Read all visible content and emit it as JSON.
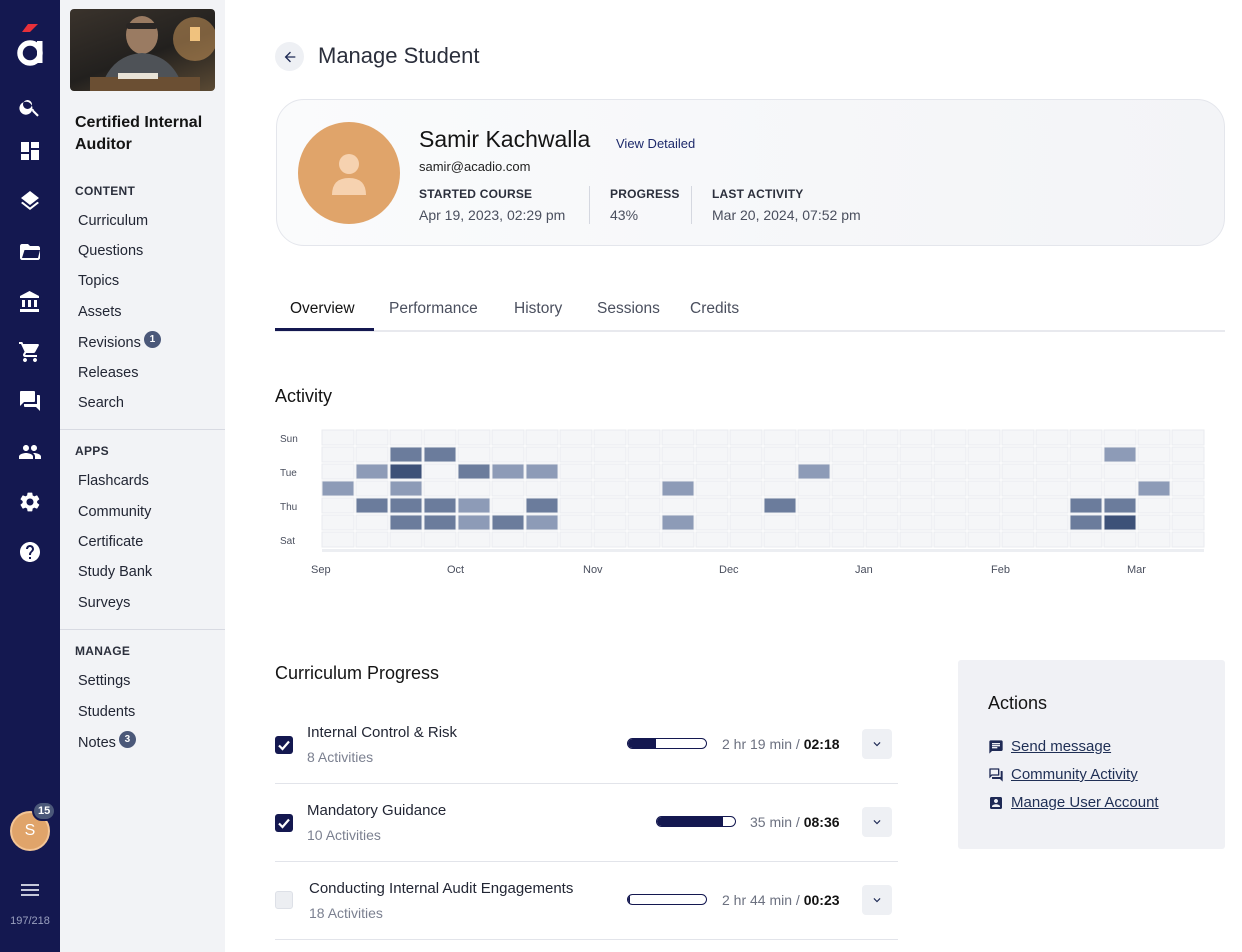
{
  "rail": {
    "logo_icon": "acadio-logo",
    "icons": [
      "search-icon",
      "dashboard-icon",
      "layers-icon",
      "folder-icon",
      "bank-icon",
      "cart-icon",
      "chat-icon",
      "people-icon",
      "gear-icon",
      "help-icon"
    ],
    "avatar_initial": "S",
    "avatar_badge": "15",
    "version": "197/218"
  },
  "sidebar": {
    "course_title": "Certified Internal Auditor",
    "content_title": "CONTENT",
    "content_items": [
      {
        "label": "Curriculum"
      },
      {
        "label": "Questions"
      },
      {
        "label": "Topics"
      },
      {
        "label": "Assets"
      },
      {
        "label": "Revisions",
        "badge": "1"
      },
      {
        "label": "Releases"
      },
      {
        "label": "Search"
      }
    ],
    "apps_title": "APPS",
    "apps_items": [
      {
        "label": "Flashcards"
      },
      {
        "label": "Community"
      },
      {
        "label": "Certificate"
      },
      {
        "label": "Study Bank"
      },
      {
        "label": "Surveys"
      }
    ],
    "manage_title": "MANAGE",
    "manage_items": [
      {
        "label": "Settings"
      },
      {
        "label": "Students"
      },
      {
        "label": "Notes",
        "badge": "3"
      }
    ]
  },
  "header": {
    "title": "Manage Student"
  },
  "profile": {
    "name": "Samir Kachwalla",
    "view_link": "View Detailed",
    "email": "samir@acadio.com",
    "started_label": "STARTED COURSE",
    "started_value": "Apr 19, 2023, 02:29 pm",
    "progress_label": "PROGRESS",
    "progress_value": "43%",
    "last_label": "LAST ACTIVITY",
    "last_value": "Mar 20, 2024, 07:52 pm"
  },
  "tabs": [
    "Overview",
    "Performance",
    "History",
    "Sessions",
    "Credits"
  ],
  "activity": {
    "title": "Activity",
    "day_labels": [
      "Sun",
      "",
      "Tue",
      "",
      "Thu",
      "",
      "Sat"
    ],
    "month_labels": [
      {
        "label": "Sep",
        "week": 0
      },
      {
        "label": "Oct",
        "week": 4
      },
      {
        "label": "Nov",
        "week": 8
      },
      {
        "label": "Dec",
        "week": 12
      },
      {
        "label": "Jan",
        "week": 16
      },
      {
        "label": "Feb",
        "week": 20
      },
      {
        "label": "Mar",
        "week": 24
      }
    ],
    "weeks": 26,
    "levels": [
      "#f5f6f8",
      "#8d9bb7",
      "#6b7c9c",
      "#3d5178"
    ],
    "active_cells": [
      {
        "week": 0,
        "day": 3,
        "level": 1
      },
      {
        "week": 1,
        "day": 2,
        "level": 1
      },
      {
        "week": 1,
        "day": 4,
        "level": 2
      },
      {
        "week": 2,
        "day": 1,
        "level": 2
      },
      {
        "week": 2,
        "day": 2,
        "level": 3
      },
      {
        "week": 2,
        "day": 3,
        "level": 1
      },
      {
        "week": 2,
        "day": 4,
        "level": 2
      },
      {
        "week": 2,
        "day": 5,
        "level": 2
      },
      {
        "week": 3,
        "day": 1,
        "level": 2
      },
      {
        "week": 3,
        "day": 4,
        "level": 2
      },
      {
        "week": 3,
        "day": 5,
        "level": 2
      },
      {
        "week": 4,
        "day": 2,
        "level": 2
      },
      {
        "week": 4,
        "day": 4,
        "level": 1
      },
      {
        "week": 4,
        "day": 5,
        "level": 1
      },
      {
        "week": 5,
        "day": 2,
        "level": 1
      },
      {
        "week": 5,
        "day": 5,
        "level": 2
      },
      {
        "week": 6,
        "day": 2,
        "level": 1
      },
      {
        "week": 6,
        "day": 4,
        "level": 2
      },
      {
        "week": 6,
        "day": 5,
        "level": 1
      },
      {
        "week": 10,
        "day": 3,
        "level": 1
      },
      {
        "week": 10,
        "day": 5,
        "level": 1
      },
      {
        "week": 13,
        "day": 4,
        "level": 2
      },
      {
        "week": 14,
        "day": 2,
        "level": 1
      },
      {
        "week": 22,
        "day": 4,
        "level": 2
      },
      {
        "week": 22,
        "day": 5,
        "level": 2
      },
      {
        "week": 23,
        "day": 1,
        "level": 1
      },
      {
        "week": 23,
        "day": 4,
        "level": 2
      },
      {
        "week": 23,
        "day": 5,
        "level": 3
      },
      {
        "week": 24,
        "day": 3,
        "level": 1
      }
    ]
  },
  "curriculum": {
    "title": "Curriculum Progress",
    "rows": [
      {
        "title": "Internal Control & Risk",
        "sub": "8 Activities",
        "checked": true,
        "progress": 0.36,
        "time": "2 hr 19 min / ",
        "time_bold": "02:18"
      },
      {
        "title": "Mandatory Guidance",
        "sub": "10 Activities",
        "checked": true,
        "progress": 0.85,
        "time": "35 min / ",
        "time_bold": "08:36"
      },
      {
        "title": "Conducting Internal Audit Engagements",
        "sub": "18 Activities",
        "checked": false,
        "progress": 0.02,
        "time": "2 hr 44 min / ",
        "time_bold": "00:23"
      }
    ]
  },
  "actions": {
    "title": "Actions",
    "links": [
      {
        "label": "Send message",
        "icon": "message-icon"
      },
      {
        "label": "Community Activity",
        "icon": "forum-icon"
      },
      {
        "label": "Manage User Account",
        "icon": "account-box-icon"
      }
    ]
  }
}
